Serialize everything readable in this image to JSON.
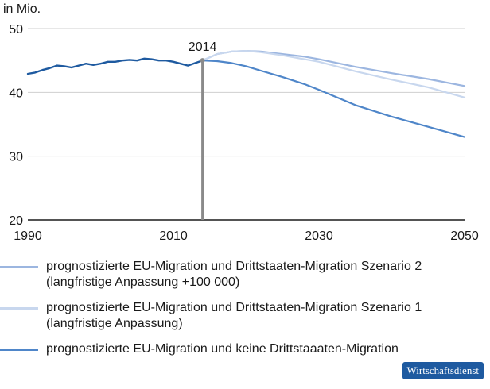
{
  "chart_data": {
    "type": "line",
    "ylabel": "in Mio.",
    "xlim": [
      1990,
      2050
    ],
    "ylim": [
      20,
      50
    ],
    "x_ticks": [
      1990,
      2010,
      2030,
      2050
    ],
    "y_ticks": [
      20,
      30,
      40,
      50
    ],
    "grid": true,
    "marker": {
      "year": 2014,
      "label": "2014",
      "value": 45
    },
    "history": {
      "color": "#1e5aa0",
      "x": [
        1990,
        1991,
        1992,
        1993,
        1994,
        1995,
        1996,
        1997,
        1998,
        1999,
        2000,
        2001,
        2002,
        2003,
        2004,
        2005,
        2006,
        2007,
        2008,
        2009,
        2010,
        2011,
        2012,
        2013,
        2014
      ],
      "y": [
        42.9,
        43.1,
        43.5,
        43.8,
        44.2,
        44.1,
        43.9,
        44.2,
        44.5,
        44.3,
        44.5,
        44.8,
        44.8,
        45.0,
        45.1,
        45.0,
        45.3,
        45.2,
        45.0,
        45.0,
        44.8,
        44.5,
        44.2,
        44.6,
        45.0
      ]
    },
    "series": [
      {
        "name": "prognostizierte EU-Migration und Drittstaaten-Migration Szenario 2",
        "name_line2": "(langfristige Anpassung +100 000)",
        "color": "#9cb6e0",
        "x": [
          2014,
          2016,
          2018,
          2020,
          2022,
          2025,
          2028,
          2030,
          2035,
          2040,
          2045,
          2050
        ],
        "y": [
          45.0,
          46.0,
          46.4,
          46.5,
          46.4,
          46.0,
          45.6,
          45.2,
          44.0,
          43.0,
          42.1,
          41.0
        ]
      },
      {
        "name": "prognostizierte EU-Migration und Drittstaaten-Migration Szenario 1",
        "name_line2": "(langfristige Anpassung)",
        "color": "#c8d7ee",
        "x": [
          2014,
          2016,
          2018,
          2020,
          2022,
          2025,
          2028,
          2030,
          2035,
          2040,
          2045,
          2050
        ],
        "y": [
          45.0,
          46.0,
          46.4,
          46.5,
          46.3,
          45.8,
          45.2,
          44.8,
          43.3,
          42.0,
          40.8,
          39.2
        ]
      },
      {
        "name": "prognostizierte EU-Migration und keine Drittstaaaten-Migration",
        "name_line2": "",
        "color": "#4f86c9",
        "x": [
          2014,
          2016,
          2018,
          2020,
          2022,
          2025,
          2028,
          2030,
          2035,
          2040,
          2045,
          2050
        ],
        "y": [
          45.0,
          44.9,
          44.6,
          44.1,
          43.4,
          42.4,
          41.3,
          40.4,
          38.0,
          36.2,
          34.6,
          33.0
        ]
      }
    ]
  },
  "badge": {
    "label": "Wirtschaftsdienst"
  }
}
